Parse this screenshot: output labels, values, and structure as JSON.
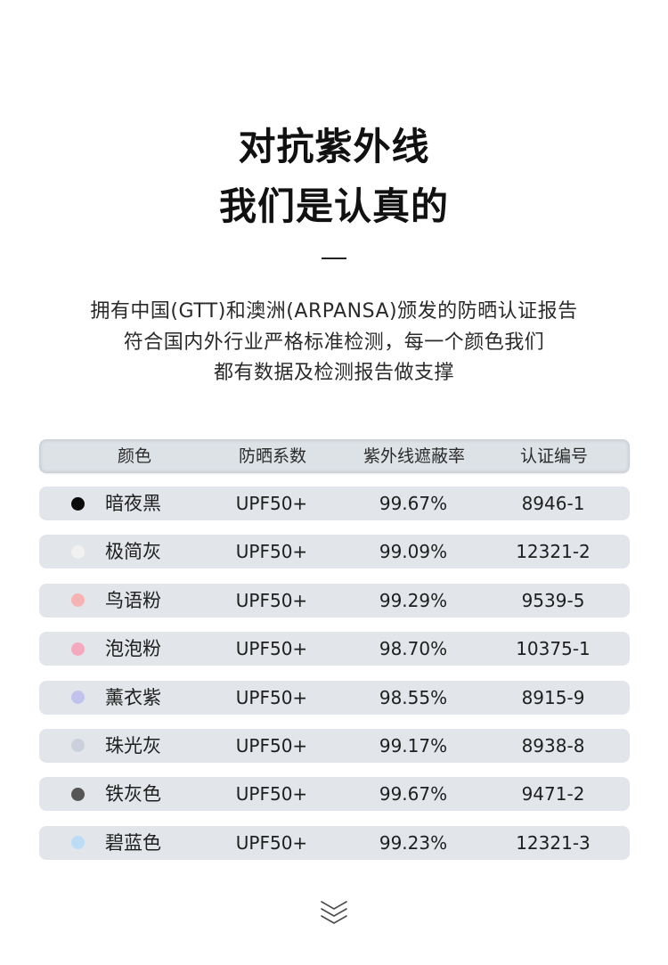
{
  "title": {
    "line1": "对抗紫外线",
    "line2": "我们是认真的"
  },
  "description": {
    "lines": [
      "拥有中国(GTT)和澳洲(ARPANSA)颁发的防晒认证报告",
      "符合国内外行业严格标准检测，每一个颜色我们",
      "都有数据及检测报告做支撑"
    ]
  },
  "table": {
    "headers": {
      "color": "颜色",
      "upf": "防晒系数",
      "uv_block_rate": "紫外线遮蔽率",
      "cert_no": "认证编号"
    },
    "rows": [
      {
        "name": "暗夜黑",
        "swatch": "#0b0b0b",
        "upf": "UPF50+",
        "rate": "99.67%",
        "cert": "8946-1"
      },
      {
        "name": "极简灰",
        "swatch": "#f1f1f1",
        "upf": "UPF50+",
        "rate": "99.09%",
        "cert": "12321-2"
      },
      {
        "name": "鸟语粉",
        "swatch": "#f7b3b3",
        "upf": "UPF50+",
        "rate": "99.29%",
        "cert": "9539-5"
      },
      {
        "name": "泡泡粉",
        "swatch": "#f5a9bf",
        "upf": "UPF50+",
        "rate": "98.70%",
        "cert": "10375-1"
      },
      {
        "name": "薰衣紫",
        "swatch": "#c1c3ec",
        "upf": "UPF50+",
        "rate": "98.55%",
        "cert": "8915-9"
      },
      {
        "name": "珠光灰",
        "swatch": "#cbd1dc",
        "upf": "UPF50+",
        "rate": "99.17%",
        "cert": "8938-8"
      },
      {
        "name": "铁灰色",
        "swatch": "#565656",
        "upf": "UPF50+",
        "rate": "99.67%",
        "cert": "9471-2"
      },
      {
        "name": "碧蓝色",
        "swatch": "#bcdcf6",
        "upf": "UPF50+",
        "rate": "99.23%",
        "cert": "12321-3"
      }
    ]
  },
  "icons": {
    "scroll_hint": "triple-chevron-down-icon"
  },
  "colors": {
    "background": "#ffffff",
    "text": "#1a1a1a",
    "header_bg": "#dde2e7",
    "row_bg": "#e2e6ea"
  }
}
